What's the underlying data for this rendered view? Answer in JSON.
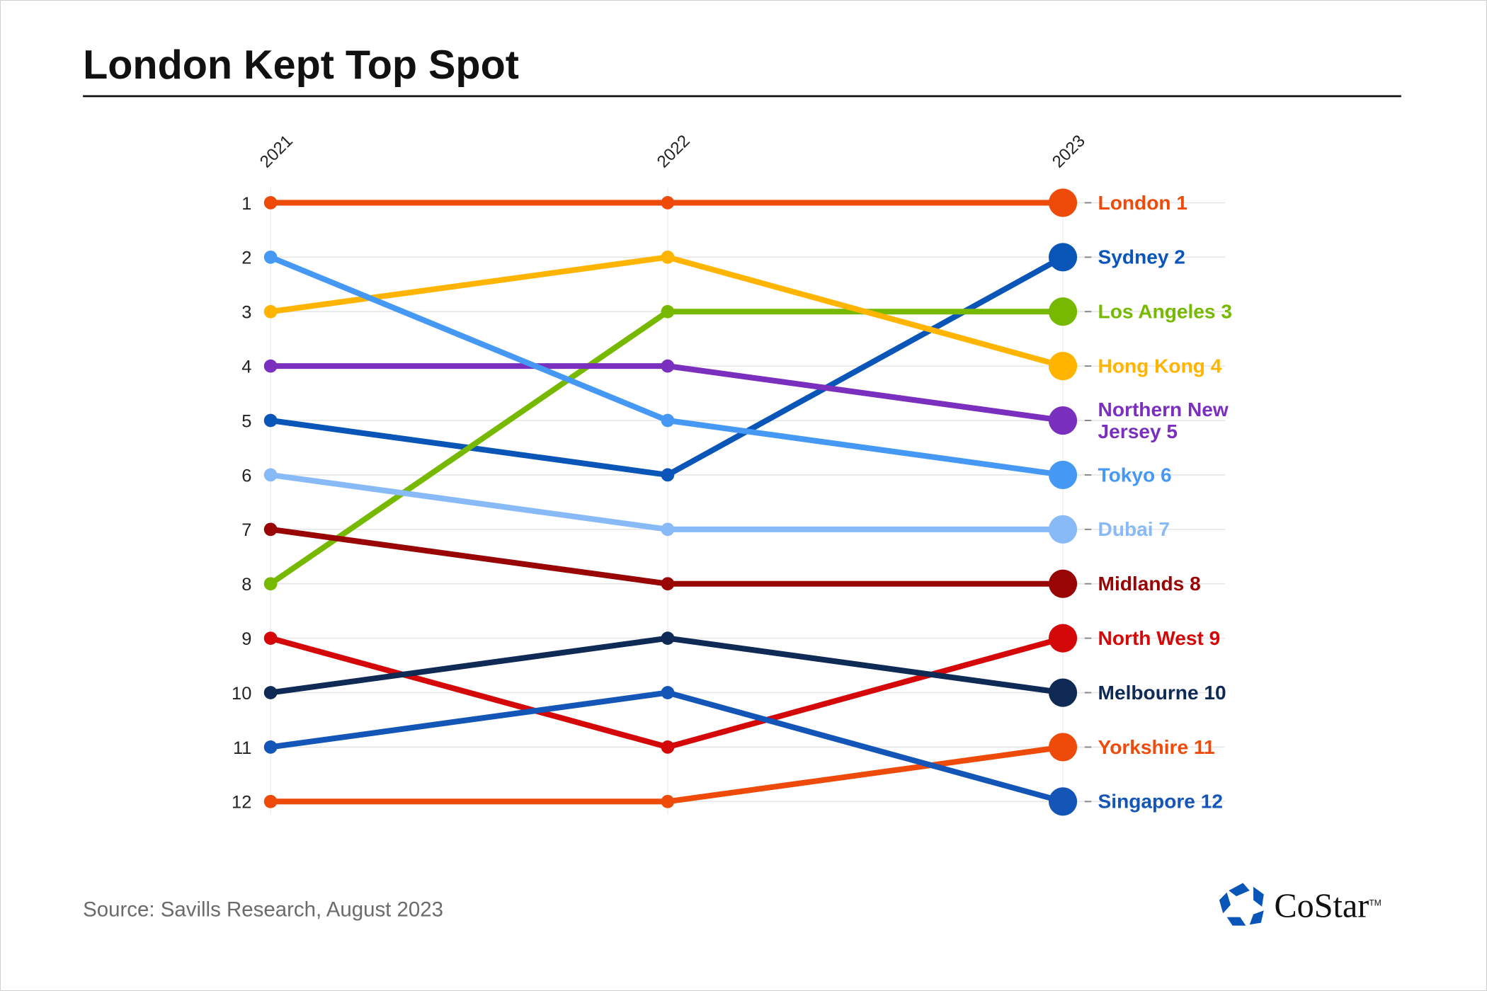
{
  "chart_data": {
    "type": "line",
    "subtype": "bump",
    "title": "London Kept Top Spot",
    "x": [
      "2021",
      "2022",
      "2023"
    ],
    "ylabel": "",
    "xlabel": "",
    "ylim": [
      1,
      12
    ],
    "y_inverted": true,
    "yticks": [
      "1",
      "2",
      "3",
      "4",
      "5",
      "6",
      "7",
      "8",
      "9",
      "10",
      "11",
      "12"
    ],
    "grid": true,
    "series": [
      {
        "name": "London",
        "label": "London 1",
        "color": "#ee4b0b",
        "values": [
          1,
          1,
          1
        ]
      },
      {
        "name": "Sydney",
        "label": "Sydney 2",
        "color": "#0a55b8",
        "values": [
          5,
          6,
          2
        ]
      },
      {
        "name": "Los Angeles",
        "label": "Los Angeles 3",
        "color": "#76b900",
        "values": [
          8,
          3,
          3
        ]
      },
      {
        "name": "Hong Kong",
        "label": "Hong Kong 4",
        "color": "#ffb400",
        "values": [
          3,
          2,
          4
        ]
      },
      {
        "name": "Northern New Jersey",
        "label": "Northern New Jersey 5",
        "color": "#7b2fbe",
        "values": [
          4,
          4,
          5
        ]
      },
      {
        "name": "Tokyo",
        "label": "Tokyo 6",
        "color": "#4599f5",
        "values": [
          2,
          5,
          6
        ]
      },
      {
        "name": "Dubai",
        "label": "Dubai 7",
        "color": "#88baf7",
        "values": [
          6,
          7,
          7
        ]
      },
      {
        "name": "Midlands",
        "label": "Midlands 8",
        "color": "#990505",
        "values": [
          7,
          8,
          8
        ]
      },
      {
        "name": "North West",
        "label": "North West 9",
        "color": "#d40808",
        "values": [
          9,
          11,
          9
        ]
      },
      {
        "name": "Melbourne",
        "label": "Melbourne 10",
        "color": "#0e2a55",
        "values": [
          10,
          9,
          10
        ]
      },
      {
        "name": "Yorkshire",
        "label": "Yorkshire 11",
        "color": "#ee4b0b",
        "values": [
          12,
          12,
          11
        ]
      },
      {
        "name": "Singapore",
        "label": "Singapore 12",
        "color": "#1455b8",
        "values": [
          11,
          10,
          12
        ]
      }
    ]
  },
  "footer": {
    "source": "Source: Savills Research, August 2023",
    "logo": "CoStar",
    "logo_tm": "TM",
    "logo_color": "#0a55b8"
  }
}
